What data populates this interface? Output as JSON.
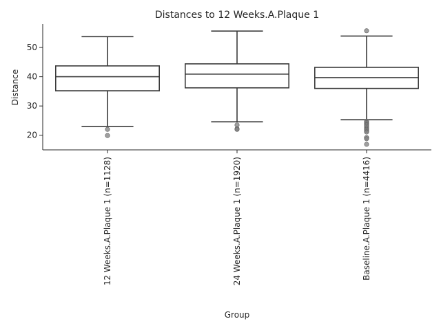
{
  "chart_data": {
    "type": "box",
    "title": "Distances to 12 Weeks.A.Plaque 1",
    "xlabel": "Group",
    "ylabel": "Distance",
    "ylim": [
      15,
      58
    ],
    "yticks": [
      20,
      30,
      40,
      50
    ],
    "grid": false,
    "categories": [
      "12 Weeks.A.Plaque 1 (n=1128)",
      "24 Weeks.A.Plaque 1 (n=1920)",
      "Baseline.A.Plaque 1 (n=4416)"
    ],
    "boxes": [
      {
        "whisker_low": 23.0,
        "q1": 35.2,
        "median": 40.0,
        "q3": 43.7,
        "whisker_high": 53.7,
        "outliers": [
          22.0,
          19.9
        ]
      },
      {
        "whisker_low": 24.6,
        "q1": 36.2,
        "median": 40.9,
        "q3": 44.4,
        "whisker_high": 55.6,
        "outliers": [
          23.5,
          22.2,
          22.0
        ]
      },
      {
        "whisker_low": 25.3,
        "q1": 36.0,
        "median": 39.7,
        "q3": 43.2,
        "whisker_high": 53.9,
        "outliers": [
          55.7,
          24.8,
          24.3,
          23.9,
          23.5,
          23.0,
          22.5,
          22.0,
          21.5,
          21.1,
          19.2,
          18.8,
          16.9
        ]
      }
    ],
    "colors": {
      "box_edge": "#3a3a3a",
      "outlier": "#7f7f7f",
      "text": "#262626",
      "axis": "#262626"
    }
  }
}
